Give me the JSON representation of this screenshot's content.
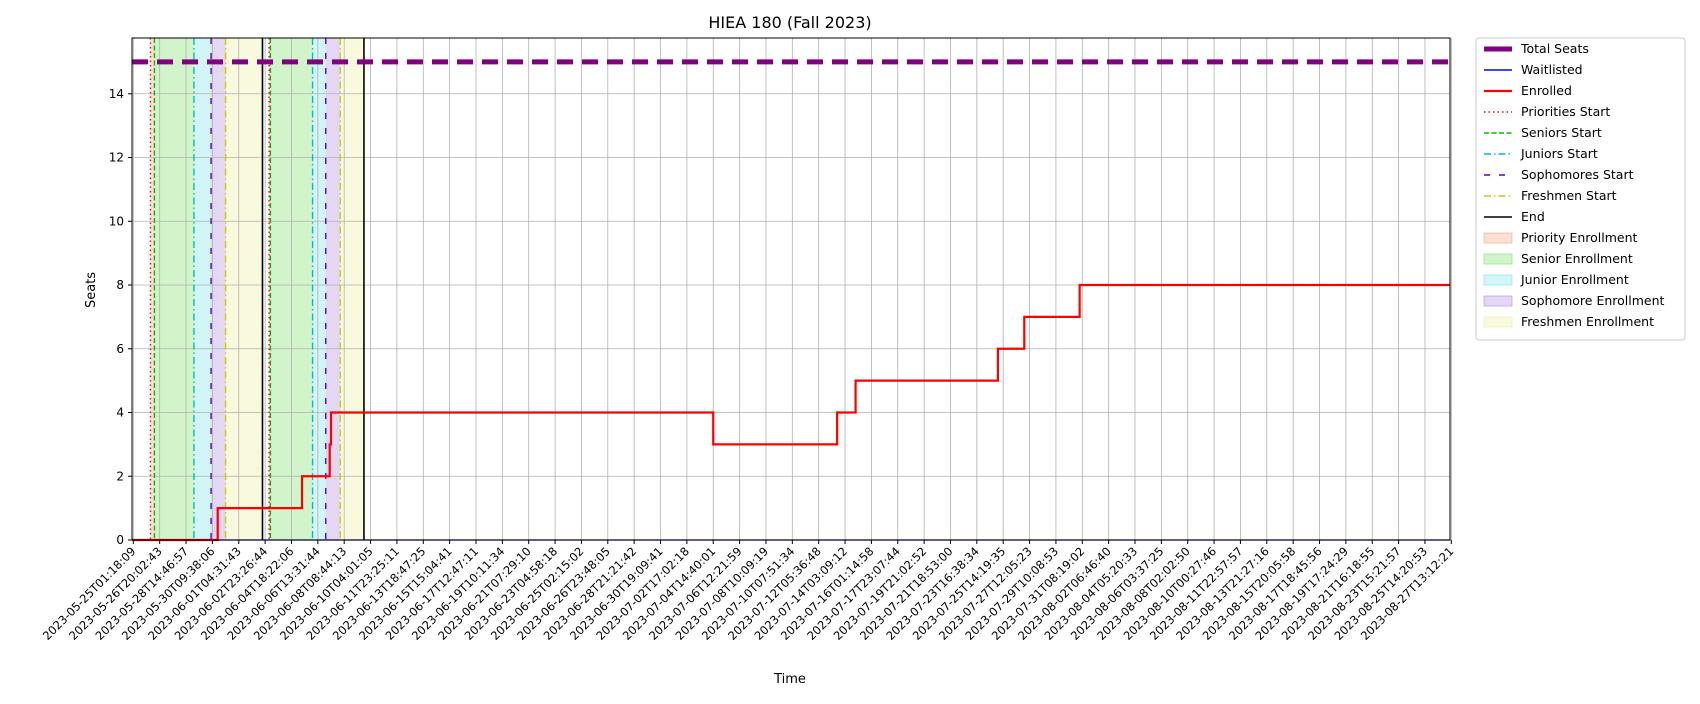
{
  "chart_data": {
    "type": "line",
    "title": "HIEA 180 (Fall 2023)",
    "xlabel": "Time",
    "ylabel": "Seats",
    "ylim": [
      0,
      15.75
    ],
    "yticks": [
      0,
      2,
      4,
      6,
      8,
      10,
      12,
      14
    ],
    "grid": true,
    "legend_position": "outside-right-top",
    "x_ticks": [
      "2023-05-25T01:18:09",
      "2023-05-26T20:02:43",
      "2023-05-28T14:46:57",
      "2023-05-30T09:38:06",
      "2023-06-01T04:31:43",
      "2023-06-02T23:26:44",
      "2023-06-04T18:22:06",
      "2023-06-06T13:31:44",
      "2023-06-08T08:44:13",
      "2023-06-10T04:01:05",
      "2023-06-11T23:25:11",
      "2023-06-13T18:47:25",
      "2023-06-15T15:04:41",
      "2023-06-17T12:47:11",
      "2023-06-19T10:11:34",
      "2023-06-21T07:29:10",
      "2023-06-23T04:58:18",
      "2023-06-25T02:15:02",
      "2023-06-26T23:48:05",
      "2023-06-28T21:21:42",
      "2023-06-30T19:09:41",
      "2023-07-02T17:02:18",
      "2023-07-04T14:40:01",
      "2023-07-06T12:21:59",
      "2023-07-08T10:09:19",
      "2023-07-10T07:51:34",
      "2023-07-12T05:36:48",
      "2023-07-14T03:09:12",
      "2023-07-16T01:14:58",
      "2023-07-17T23:07:44",
      "2023-07-19T21:02:52",
      "2023-07-21T18:53:00",
      "2023-07-23T16:38:34",
      "2023-07-25T14:19:35",
      "2023-07-27T12:05:23",
      "2023-07-29T10:08:53",
      "2023-07-31T08:19:02",
      "2023-08-02T06:46:40",
      "2023-08-04T05:20:33",
      "2023-08-06T03:37:25",
      "2023-08-08T02:02:50",
      "2023-08-10T00:27:46",
      "2023-08-11T22:57:57",
      "2023-08-13T21:27:16",
      "2023-08-15T20:05:58",
      "2023-08-17T18:45:56",
      "2023-08-19T17:24:29",
      "2023-08-21T16:18:55",
      "2023-08-23T15:21:57",
      "2023-08-25T14:20:53",
      "2023-08-27T13:12:21"
    ],
    "x_range_ticks": [
      -0.05,
      49.95
    ],
    "series": [
      {
        "name": "Total Seats",
        "color": "#800080",
        "style": "dashed-thick",
        "x": [
          -0.05,
          49.95
        ],
        "y": [
          15,
          15
        ]
      },
      {
        "name": "Waitlisted",
        "color": "#0000ff",
        "style": "solid",
        "x": [
          -0.05,
          49.95
        ],
        "y": [
          0,
          0
        ]
      },
      {
        "name": "Enrolled",
        "color": "#ff0000",
        "style": "step",
        "x": [
          -0.05,
          3.1,
          3.2,
          6.4,
          7.45,
          7.5,
          7.55,
          22.0,
          26.7,
          27.4,
          32.8,
          33.8,
          35.9,
          49.95
        ],
        "y": [
          0,
          0,
          1,
          2,
          3,
          4,
          4,
          3,
          4,
          5,
          6,
          7,
          8,
          8
        ]
      }
    ],
    "vertical_lines": [
      {
        "name": "Priorities Start",
        "color": "#ff0000",
        "style": "dotted",
        "x": [
          0.65,
          5.15
        ]
      },
      {
        "name": "Seniors Start",
        "color": "#00bb00",
        "style": "dashed",
        "x": [
          0.8,
          5.2
        ]
      },
      {
        "name": "Juniors Start",
        "color": "#00bfbf",
        "style": "dashdot",
        "x": [
          2.3,
          6.8
        ]
      },
      {
        "name": "Sophomores Start",
        "color": "#5500cc",
        "style": "loosedash",
        "x": [
          2.95,
          7.3
        ]
      },
      {
        "name": "Freshmen Start",
        "color": "#cccc00",
        "style": "dashdot",
        "x": [
          3.5,
          7.85
        ]
      },
      {
        "name": "End",
        "color": "#000000",
        "style": "solid",
        "x": [
          4.9,
          8.75
        ]
      }
    ],
    "shaded_regions": [
      {
        "name": "Priority Enrollment",
        "color": "#f4a582",
        "spans": [
          [
            0.65,
            0.8
          ],
          [
            5.15,
            5.2
          ]
        ]
      },
      {
        "name": "Senior Enrollment",
        "color": "#7de06a",
        "spans": [
          [
            0.8,
            2.3
          ],
          [
            5.2,
            6.8
          ]
        ]
      },
      {
        "name": "Junior Enrollment",
        "color": "#7fe3e8",
        "spans": [
          [
            2.3,
            2.95
          ],
          [
            6.8,
            7.3
          ]
        ]
      },
      {
        "name": "Sophomore Enrollment",
        "color": "#b28ce0",
        "spans": [
          [
            2.95,
            3.5
          ],
          [
            7.3,
            7.85
          ]
        ]
      },
      {
        "name": "Freshmen Enrollment",
        "color": "#eeeea0",
        "spans": [
          [
            3.5,
            4.9
          ],
          [
            7.85,
            8.75
          ]
        ]
      }
    ],
    "legend": [
      "Total Seats",
      "Waitlisted",
      "Enrolled",
      "Priorities Start",
      "Seniors Start",
      "Juniors Start",
      "Sophomores Start",
      "Freshmen Start",
      "End",
      "Priority Enrollment",
      "Senior Enrollment",
      "Junior Enrollment",
      "Sophomore Enrollment",
      "Freshmen Enrollment"
    ]
  }
}
